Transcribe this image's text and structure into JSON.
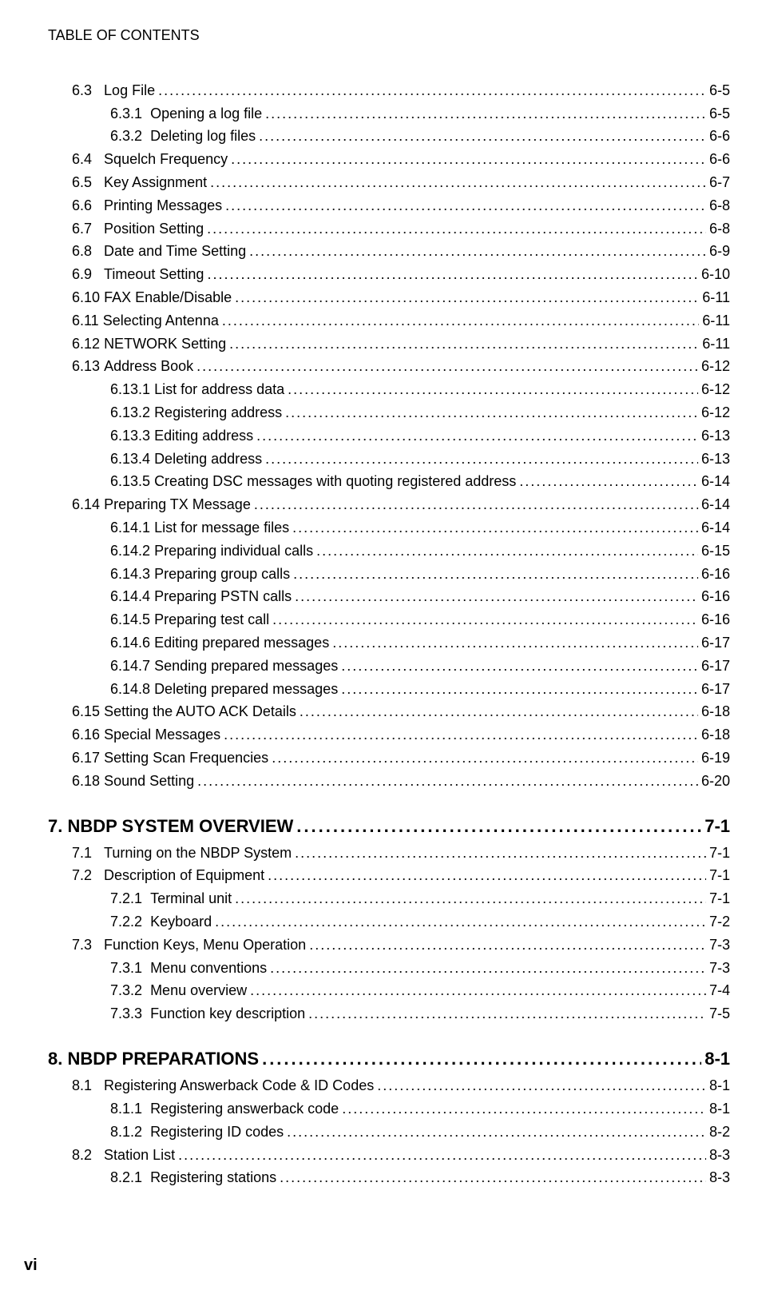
{
  "header": "TABLE OF CONTENTS",
  "footer": "vi",
  "entries": [
    {
      "level": 1,
      "num": "6.3",
      "label": "Log File",
      "page": "6-5",
      "gap": "   "
    },
    {
      "level": 2,
      "num": "6.3.1",
      "label": "Opening a log file",
      "page": "6-5",
      "gap": "  "
    },
    {
      "level": 2,
      "num": "6.3.2",
      "label": "Deleting log files",
      "page": "6-6",
      "gap": "  "
    },
    {
      "level": 1,
      "num": "6.4",
      "label": "Squelch Frequency",
      "page": "6-6",
      "gap": "   "
    },
    {
      "level": 1,
      "num": "6.5",
      "label": "Key Assignment",
      "page": "6-7",
      "gap": "   "
    },
    {
      "level": 1,
      "num": "6.6",
      "label": "Printing Messages",
      "page": "6-8",
      "gap": "   "
    },
    {
      "level": 1,
      "num": "6.7",
      "label": "Position Setting",
      "page": "6-8",
      "gap": "   "
    },
    {
      "level": 1,
      "num": "6.8",
      "label": "Date and Time Setting",
      "page": "6-9",
      "gap": "   "
    },
    {
      "level": 1,
      "num": "6.9",
      "label": "Timeout Setting",
      "page": "6-10",
      "gap": "   "
    },
    {
      "level": 1,
      "num": "6.10",
      "label": "FAX Enable/Disable",
      "page": "6-11",
      "gap": " "
    },
    {
      "level": 1,
      "num": "6.11",
      "label": "Selecting Antenna",
      "page": "6-11",
      "gap": " "
    },
    {
      "level": 1,
      "num": "6.12",
      "label": "NETWORK Setting",
      "page": "6-11",
      "gap": " "
    },
    {
      "level": 1,
      "num": "6.13",
      "label": "Address Book",
      "page": "6-12",
      "gap": " "
    },
    {
      "level": 2,
      "num": "6.13.1",
      "label": "List for address data",
      "page": "6-12",
      "gap": " "
    },
    {
      "level": 2,
      "num": "6.13.2",
      "label": "Registering address",
      "page": "6-12",
      "gap": " "
    },
    {
      "level": 2,
      "num": "6.13.3",
      "label": "Editing address",
      "page": "6-13",
      "gap": " "
    },
    {
      "level": 2,
      "num": "6.13.4",
      "label": "Deleting address",
      "page": "6-13",
      "gap": " "
    },
    {
      "level": 2,
      "num": "6.13.5",
      "label": "Creating DSC messages with quoting registered address",
      "page": "6-14",
      "gap": " "
    },
    {
      "level": 1,
      "num": "6.14",
      "label": "Preparing TX Message",
      "page": "6-14",
      "gap": " "
    },
    {
      "level": 2,
      "num": "6.14.1",
      "label": "List for message files",
      "page": "6-14",
      "gap": " "
    },
    {
      "level": 2,
      "num": "6.14.2",
      "label": "Preparing individual calls",
      "page": "6-15",
      "gap": " "
    },
    {
      "level": 2,
      "num": "6.14.3",
      "label": "Preparing group calls",
      "page": "6-16",
      "gap": " "
    },
    {
      "level": 2,
      "num": "6.14.4",
      "label": "Preparing PSTN calls",
      "page": "6-16",
      "gap": " "
    },
    {
      "level": 2,
      "num": "6.14.5",
      "label": "Preparing test call",
      "page": "6-16",
      "gap": " "
    },
    {
      "level": 2,
      "num": "6.14.6",
      "label": "Editing prepared messages",
      "page": "6-17",
      "gap": " "
    },
    {
      "level": 2,
      "num": "6.14.7",
      "label": "Sending prepared messages",
      "page": "6-17",
      "gap": " "
    },
    {
      "level": 2,
      "num": "6.14.8",
      "label": "Deleting prepared messages",
      "page": "6-17",
      "gap": " "
    },
    {
      "level": 1,
      "num": "6.15",
      "label": "Setting the AUTO ACK Details",
      "page": "6-18",
      "gap": " "
    },
    {
      "level": 1,
      "num": "6.16",
      "label": "Special Messages",
      "page": "6-18",
      "gap": " "
    },
    {
      "level": 1,
      "num": "6.17",
      "label": "Setting Scan Frequencies",
      "page": "6-19",
      "gap": " "
    },
    {
      "level": 1,
      "num": "6.18",
      "label": "Sound Setting",
      "page": "6-20",
      "gap": " "
    },
    {
      "level": 0,
      "num": "7.",
      "label": "NBDP SYSTEM OVERVIEW",
      "page": "7-1",
      "gap": " "
    },
    {
      "level": 1,
      "num": "7.1",
      "label": "Turning on the NBDP System",
      "page": "7-1",
      "gap": "   "
    },
    {
      "level": 1,
      "num": "7.2",
      "label": "Description of Equipment",
      "page": "7-1",
      "gap": "   "
    },
    {
      "level": 2,
      "num": "7.2.1",
      "label": "Terminal unit",
      "page": "7-1",
      "gap": "  "
    },
    {
      "level": 2,
      "num": "7.2.2",
      "label": "Keyboard",
      "page": "7-2",
      "gap": "  "
    },
    {
      "level": 1,
      "num": "7.3",
      "label": "Function Keys, Menu Operation",
      "page": "7-3",
      "gap": "   "
    },
    {
      "level": 2,
      "num": "7.3.1",
      "label": "Menu conventions",
      "page": "7-3",
      "gap": "  "
    },
    {
      "level": 2,
      "num": "7.3.2",
      "label": "Menu overview",
      "page": "7-4",
      "gap": "  "
    },
    {
      "level": 2,
      "num": "7.3.3",
      "label": "Function key description",
      "page": "7-5",
      "gap": "  "
    },
    {
      "level": 0,
      "num": "8.",
      "label": "NBDP PREPARATIONS",
      "page": "8-1",
      "gap": " "
    },
    {
      "level": 1,
      "num": "8.1",
      "label": "Registering Answerback Code & ID Codes",
      "page": "8-1",
      "gap": "   "
    },
    {
      "level": 2,
      "num": "8.1.1",
      "label": "Registering answerback code",
      "page": "8-1",
      "gap": "  "
    },
    {
      "level": 2,
      "num": "8.1.2",
      "label": "Registering ID codes",
      "page": "8-2",
      "gap": "  "
    },
    {
      "level": 1,
      "num": "8.2",
      "label": "Station List",
      "page": "8-3",
      "gap": "   "
    },
    {
      "level": 2,
      "num": "8.2.1",
      "label": "Registering stations",
      "page": "8-3",
      "gap": "  "
    }
  ]
}
